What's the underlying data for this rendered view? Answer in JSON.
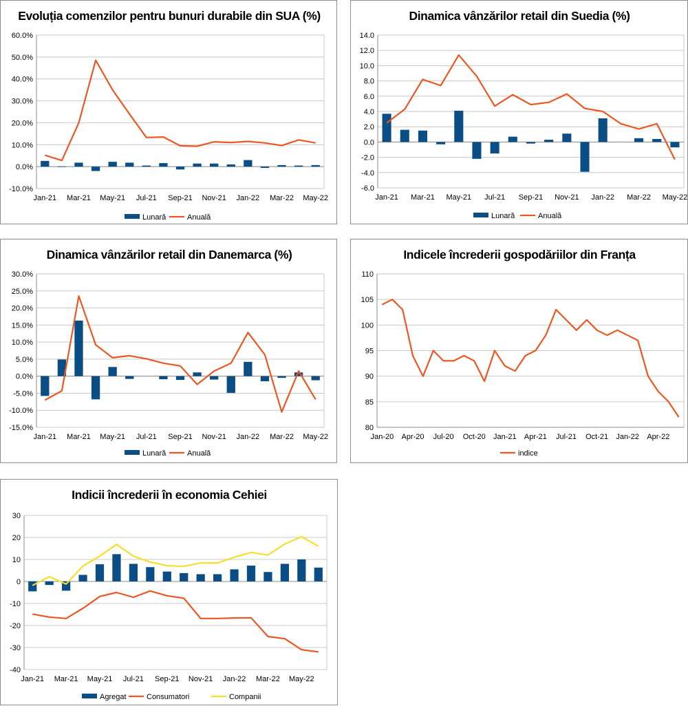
{
  "chart_data": [
    {
      "id": "c1",
      "type": "bar+line",
      "title": "Evoluția comenzilor pentru bunuri durabile din SUA (%)",
      "categories": [
        "Jan-21",
        "Feb-21",
        "Mar-21",
        "Apr-21",
        "May-21",
        "Jun-21",
        "Jul-21",
        "Aug-21",
        "Sep-21",
        "Oct-21",
        "Nov-21",
        "Dec-21",
        "Jan-22",
        "Feb-22",
        "Mar-22",
        "Apr-22",
        "May-22"
      ],
      "x_tick_labels": [
        "Jan-21",
        "Mar-21",
        "May-21",
        "Jul-21",
        "Sep-21",
        "Nov-21",
        "Jan-22",
        "Mar-22",
        "May-22"
      ],
      "y_tick_labels": [
        "60.0%",
        "50.0%",
        "40.0%",
        "30.0%",
        "20.0%",
        "10.0%",
        "0.0%",
        "-10.0%"
      ],
      "ylim": [
        -10,
        60
      ],
      "bar_series": [
        {
          "name": "Lunară",
          "values": [
            2.6,
            0.1,
            1.8,
            -2.0,
            2.2,
            1.8,
            0.5,
            1.6,
            -1.3,
            1.4,
            1.4,
            1.0,
            3.0,
            -0.6,
            0.7,
            0.5,
            0.7
          ]
        }
      ],
      "line_series": [
        {
          "name": "Anuală",
          "values": [
            5.2,
            2.8,
            20.0,
            48.5,
            35.0,
            24.0,
            13.3,
            13.5,
            9.5,
            9.3,
            11.3,
            11.0,
            11.5,
            10.8,
            9.6,
            12.2,
            10.8
          ]
        }
      ]
    },
    {
      "id": "c2",
      "type": "bar+line",
      "title": "Dinamica vânzărilor retail din Suedia (%)",
      "categories": [
        "Jan-21",
        "Feb-21",
        "Mar-21",
        "Apr-21",
        "May-21",
        "Jun-21",
        "Jul-21",
        "Aug-21",
        "Sep-21",
        "Oct-21",
        "Nov-21",
        "Dec-21",
        "Jan-22",
        "Feb-22",
        "Mar-22",
        "Apr-22",
        "May-22"
      ],
      "x_tick_labels": [
        "Jan-21",
        "Mar-21",
        "May-21",
        "Jul-21",
        "Sep-21",
        "Nov-21",
        "Jan-22",
        "Mar-22",
        "May-22"
      ],
      "y_tick_labels": [
        "14.0",
        "12.0",
        "10.0",
        "8.0",
        "6.0",
        "4.0",
        "2.0",
        "0.0",
        "-2.0",
        "-4.0",
        "-6.0"
      ],
      "ylim": [
        -6,
        14
      ],
      "bar_series": [
        {
          "name": "Lunară",
          "values": [
            3.7,
            1.6,
            1.5,
            -0.3,
            4.1,
            -2.2,
            -1.5,
            0.7,
            -0.2,
            0.3,
            1.1,
            -3.9,
            3.1,
            0.0,
            0.5,
            0.4,
            -0.7
          ]
        }
      ],
      "line_series": [
        {
          "name": "Anuală",
          "values": [
            2.5,
            4.3,
            8.2,
            7.4,
            11.4,
            8.6,
            4.7,
            6.2,
            4.9,
            5.2,
            6.3,
            4.4,
            4.0,
            2.4,
            1.7,
            2.4,
            -2.3
          ]
        }
      ]
    },
    {
      "id": "c3",
      "type": "bar+line",
      "title": "Dinamica vânzărilor retail din Danemarca (%)",
      "categories": [
        "Jan-21",
        "Feb-21",
        "Mar-21",
        "Apr-21",
        "May-21",
        "Jun-21",
        "Jul-21",
        "Aug-21",
        "Sep-21",
        "Oct-21",
        "Nov-21",
        "Dec-21",
        "Jan-22",
        "Feb-22",
        "Mar-22",
        "Apr-22",
        "May-22"
      ],
      "x_tick_labels": [
        "Jan-21",
        "Mar-21",
        "May-21",
        "Jul-21",
        "Sep-21",
        "Nov-21",
        "Jan-22",
        "Mar-22",
        "May-22"
      ],
      "y_tick_labels": [
        "30.0%",
        "25.0%",
        "20.0%",
        "15.0%",
        "10.0%",
        "5.0%",
        "0.0%",
        "-5.0%",
        "-10.0%",
        "-15.0%"
      ],
      "ylim": [
        -15,
        30
      ],
      "bar_series": [
        {
          "name": "Lunară",
          "values": [
            -5.8,
            4.9,
            16.3,
            -6.8,
            2.7,
            -0.8,
            0.0,
            -0.9,
            -1.1,
            1.1,
            -1.0,
            -4.9,
            4.2,
            -1.5,
            -0.5,
            1.1,
            -1.2
          ]
        }
      ],
      "line_series": [
        {
          "name": "Anuală",
          "values": [
            -7.0,
            -4.3,
            23.5,
            9.2,
            5.4,
            6.0,
            5.1,
            3.8,
            3.0,
            -2.4,
            1.5,
            3.8,
            12.8,
            6.3,
            -10.5,
            1.5,
            -6.8
          ]
        }
      ]
    },
    {
      "id": "c4",
      "type": "line",
      "title": "Indicele încrederii gospodăriilor din Franța",
      "categories": [
        "Jan-20",
        "Feb-20",
        "Mar-20",
        "Apr-20",
        "May-20",
        "Jun-20",
        "Jul-20",
        "Aug-20",
        "Sep-20",
        "Oct-20",
        "Nov-20",
        "Dec-20",
        "Jan-21",
        "Feb-21",
        "Mar-21",
        "Apr-21",
        "May-21",
        "Jun-21",
        "Jul-21",
        "Aug-21",
        "Sep-21",
        "Oct-21",
        "Nov-21",
        "Dec-21",
        "Jan-22",
        "Feb-22",
        "Mar-22",
        "Apr-22",
        "May-22",
        "Jun-22"
      ],
      "x_tick_labels": [
        "Jan-20",
        "Apr-20",
        "Jul-20",
        "Oct-20",
        "Jan-21",
        "Apr-21",
        "Jul-21",
        "Oct-21",
        "Jan-22",
        "Apr-22"
      ],
      "y_tick_labels": [
        "110",
        "105",
        "100",
        "95",
        "90",
        "85",
        "80"
      ],
      "ylim": [
        80,
        110
      ],
      "bar_series": [],
      "line_series": [
        {
          "name": "indice",
          "values": [
            104,
            105,
            103,
            94,
            90,
            95,
            93,
            93,
            94,
            93,
            89,
            95,
            92,
            91,
            94,
            95,
            98,
            103,
            101,
            99,
            101,
            99,
            98,
            99,
            98,
            97,
            90,
            87,
            85,
            82
          ]
        }
      ]
    },
    {
      "id": "c5",
      "type": "bar+line",
      "title": "Indicii încrederii în economia Cehiei",
      "categories": [
        "Jan-21",
        "Feb-21",
        "Mar-21",
        "Apr-21",
        "May-21",
        "Jun-21",
        "Jul-21",
        "Aug-21",
        "Sep-21",
        "Oct-21",
        "Nov-21",
        "Dec-21",
        "Jan-22",
        "Feb-22",
        "Mar-22",
        "Apr-22",
        "May-22",
        "Jun-22"
      ],
      "x_tick_labels": [
        "Jan-21",
        "Mar-21",
        "May-21",
        "Jul-21",
        "Sep-21",
        "Nov-21",
        "Jan-22",
        "Mar-22",
        "May-22"
      ],
      "y_tick_labels": [
        "30",
        "20",
        "10",
        "0",
        "-10",
        "-20",
        "-30",
        "-40"
      ],
      "ylim": [
        -40,
        30
      ],
      "bar_series": [
        {
          "name": "Agregat",
          "values": [
            -4.5,
            -1.6,
            -4.2,
            3.0,
            7.8,
            12.4,
            8.0,
            6.5,
            4.5,
            3.8,
            3.3,
            3.3,
            5.5,
            7.2,
            4.3,
            8.0,
            10.0,
            6.3
          ]
        }
      ],
      "line_series": [
        {
          "name": "Consumatori",
          "values": [
            -14.8,
            -16.2,
            -16.8,
            -12.2,
            -6.8,
            -5.0,
            -7.2,
            -4.3,
            -6.5,
            -7.6,
            -16.8,
            -16.8,
            -16.6,
            -16.5,
            -25.0,
            -26.0,
            -31.0,
            -32.0
          ]
        },
        {
          "name": "Companii",
          "values": [
            -1.8,
            2.2,
            -1.2,
            7.0,
            11.5,
            16.8,
            11.5,
            8.8,
            7.2,
            6.8,
            8.4,
            8.4,
            11.0,
            13.2,
            12.0,
            17.0,
            20.3,
            16.0
          ]
        }
      ]
    }
  ],
  "colors": {
    "bar": "#0b4e86",
    "orange": "#ec5620",
    "yellow": "#f6de2b",
    "grid": "#c7c7c7",
    "axis": "#8c8c8c"
  }
}
